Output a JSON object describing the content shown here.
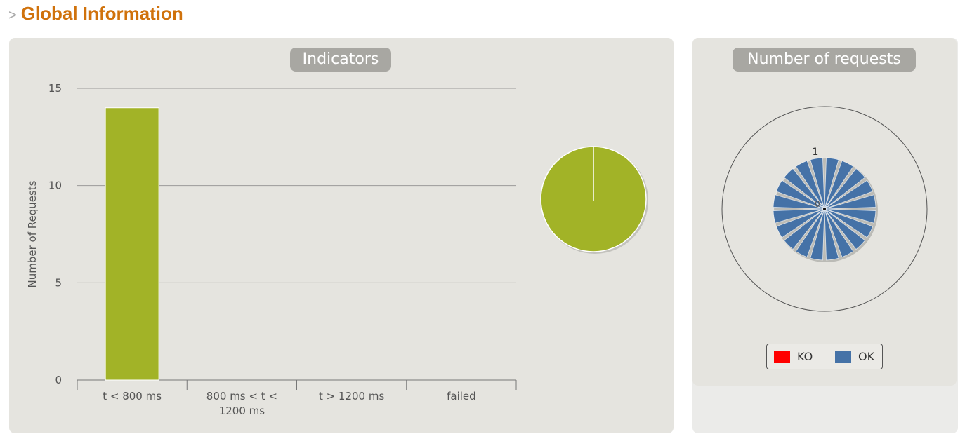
{
  "header": {
    "arrow": ">",
    "title": "Global Information"
  },
  "indicators": {
    "title": "Indicators"
  },
  "requests": {
    "title": "Number of requests"
  },
  "colors": {
    "green": "#a2b327",
    "blue": "#4572a7",
    "red": "#ff0000"
  },
  "chart_data": [
    {
      "type": "bar",
      "ylabel": "Number of Requests",
      "categories": [
        "t < 800 ms",
        "800 ms < t < 1200 ms",
        "t > 1200 ms",
        "failed"
      ],
      "category_lines": [
        [
          "t < 800 ms"
        ],
        [
          "800 ms < t <",
          "1200 ms"
        ],
        [
          "t > 1200 ms"
        ],
        [
          "failed"
        ]
      ],
      "values": [
        14,
        0,
        0,
        0
      ],
      "ylim": [
        0,
        15
      ],
      "yticks": [
        "0",
        "5",
        "10",
        "15"
      ],
      "grid": true,
      "legend": "none"
    },
    {
      "type": "pie",
      "values": [
        100
      ],
      "colors": [
        "#a2b327"
      ]
    },
    {
      "type": "polar",
      "spokes": 20,
      "values": [
        1,
        1,
        1,
        1,
        1,
        1,
        1,
        1,
        1,
        1,
        1,
        1,
        1,
        1,
        1,
        1,
        1,
        1,
        1,
        1
      ],
      "radial_labels": [
        "0",
        "1"
      ],
      "legend": {
        "position": "bottom",
        "items": [
          {
            "label": "KO",
            "color": "#ff0000"
          },
          {
            "label": "OK",
            "color": "#4572a7"
          }
        ]
      }
    }
  ]
}
